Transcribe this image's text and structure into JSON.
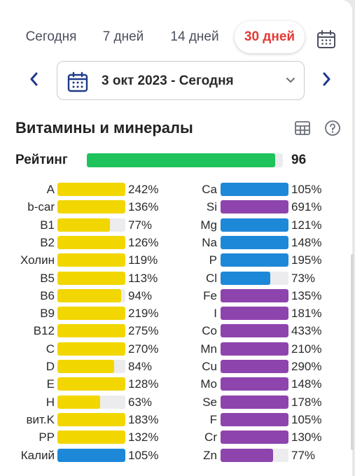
{
  "tabs": [
    {
      "label": "Сегодня"
    },
    {
      "label": "7 дней"
    },
    {
      "label": "14 дней"
    },
    {
      "label": "30 дней",
      "active": true
    }
  ],
  "date_range": {
    "label": "3 окт 2023 - Сегодня"
  },
  "section_title": "Витамины и минералы",
  "rating": {
    "label": "Рейтинг",
    "value": "96",
    "percent": 96
  },
  "colors": {
    "accent_red": "#e53935",
    "rating_green": "#1ec35b",
    "vitamin_yellow": "#f2d600",
    "blue": "#1e88d8",
    "purple": "#8e44ad",
    "nav_blue": "#1f3a8a"
  },
  "left_column": [
    {
      "label": "A",
      "value": "242%",
      "percent": 242,
      "color": "yellow"
    },
    {
      "label": "b-car",
      "value": "136%",
      "percent": 136,
      "color": "yellow"
    },
    {
      "label": "B1",
      "value": "77%",
      "percent": 77,
      "color": "yellow"
    },
    {
      "label": "B2",
      "value": "126%",
      "percent": 126,
      "color": "yellow"
    },
    {
      "label": "Холин",
      "value": "119%",
      "percent": 119,
      "color": "yellow"
    },
    {
      "label": "B5",
      "value": "113%",
      "percent": 113,
      "color": "yellow"
    },
    {
      "label": "B6",
      "value": "94%",
      "percent": 94,
      "color": "yellow"
    },
    {
      "label": "B9",
      "value": "219%",
      "percent": 219,
      "color": "yellow"
    },
    {
      "label": "B12",
      "value": "275%",
      "percent": 275,
      "color": "yellow"
    },
    {
      "label": "C",
      "value": "270%",
      "percent": 270,
      "color": "yellow"
    },
    {
      "label": "D",
      "value": "84%",
      "percent": 84,
      "color": "yellow"
    },
    {
      "label": "E",
      "value": "128%",
      "percent": 128,
      "color": "yellow"
    },
    {
      "label": "H",
      "value": "63%",
      "percent": 63,
      "color": "yellow"
    },
    {
      "label": "вит.K",
      "value": "183%",
      "percent": 183,
      "color": "yellow"
    },
    {
      "label": "PP",
      "value": "132%",
      "percent": 132,
      "color": "yellow"
    },
    {
      "label": "Калий",
      "value": "105%",
      "percent": 105,
      "color": "blue"
    }
  ],
  "right_column": [
    {
      "label": "Ca",
      "value": "105%",
      "percent": 105,
      "color": "blue"
    },
    {
      "label": "Si",
      "value": "691%",
      "percent": 691,
      "color": "purple"
    },
    {
      "label": "Mg",
      "value": "121%",
      "percent": 121,
      "color": "blue"
    },
    {
      "label": "Na",
      "value": "148%",
      "percent": 148,
      "color": "blue"
    },
    {
      "label": "P",
      "value": "195%",
      "percent": 195,
      "color": "blue"
    },
    {
      "label": "Cl",
      "value": "73%",
      "percent": 73,
      "color": "blue"
    },
    {
      "label": "Fe",
      "value": "135%",
      "percent": 135,
      "color": "purple"
    },
    {
      "label": "I",
      "value": "181%",
      "percent": 181,
      "color": "purple"
    },
    {
      "label": "Co",
      "value": "433%",
      "percent": 433,
      "color": "purple"
    },
    {
      "label": "Mn",
      "value": "210%",
      "percent": 210,
      "color": "purple"
    },
    {
      "label": "Cu",
      "value": "290%",
      "percent": 290,
      "color": "purple"
    },
    {
      "label": "Mo",
      "value": "148%",
      "percent": 148,
      "color": "purple"
    },
    {
      "label": "Se",
      "value": "178%",
      "percent": 178,
      "color": "purple"
    },
    {
      "label": "F",
      "value": "105%",
      "percent": 105,
      "color": "purple"
    },
    {
      "label": "Cr",
      "value": "130%",
      "percent": 130,
      "color": "purple"
    },
    {
      "label": "Zn",
      "value": "77%",
      "percent": 77,
      "color": "purple"
    }
  ]
}
